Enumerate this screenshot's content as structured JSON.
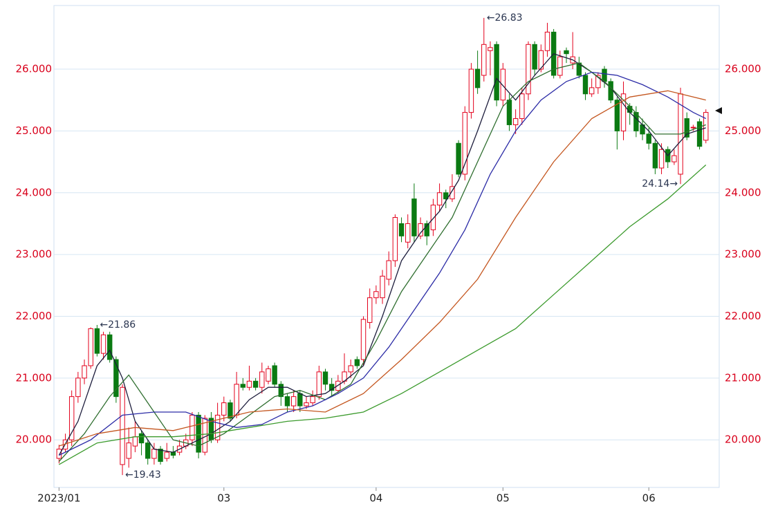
{
  "chart_data": {
    "type": "candlestick",
    "open": [
      19.7,
      19.85,
      20.0,
      20.7,
      21.0,
      21.2,
      21.8,
      21.4,
      21.7,
      21.3,
      19.6,
      19.7,
      19.9,
      20.1,
      19.95,
      19.7,
      19.85,
      19.7,
      19.8,
      19.8,
      19.9,
      20.0,
      20.4,
      19.8,
      20.35,
      20.0,
      20.4,
      20.6,
      20.4,
      20.9,
      20.85,
      20.95,
      20.85,
      20.95,
      21.2,
      20.9,
      20.7,
      20.55,
      20.75,
      20.55,
      20.6,
      20.7,
      21.1,
      20.9,
      20.8,
      20.95,
      21.1,
      21.3,
      21.3,
      21.9,
      22.3,
      22.3,
      22.6,
      22.9,
      23.5,
      23.2,
      23.9,
      23.3,
      23.5,
      23.4,
      23.8,
      24.0,
      23.9,
      24.8,
      24.3,
      25.3,
      26.0,
      25.9,
      26.3,
      26.4,
      25.5,
      25.5,
      25.1,
      25.2,
      25.6,
      26.4,
      26.0,
      26.3,
      26.6,
      25.9,
      26.3,
      26.1,
      26.1,
      25.9,
      25.6,
      25.7,
      26.0,
      25.8,
      25.5,
      25.0,
      25.4,
      25.3,
      25.1,
      24.95,
      24.8,
      24.4,
      24.7,
      24.5,
      24.3,
      25.2,
      25.05,
      25.15,
      24.85
    ],
    "high": [
      19.92,
      20.1,
      20.8,
      21.1,
      21.3,
      21.82,
      21.86,
      21.75,
      21.75,
      21.35,
      20.9,
      20.2,
      20.3,
      20.15,
      20.0,
      19.95,
      19.9,
      19.95,
      19.9,
      20.0,
      20.1,
      20.45,
      20.45,
      20.4,
      20.45,
      20.6,
      20.7,
      20.65,
      21.1,
      21.0,
      21.2,
      21.0,
      21.25,
      21.2,
      21.25,
      20.95,
      20.75,
      20.8,
      20.8,
      20.7,
      20.8,
      21.2,
      21.15,
      21.0,
      21.05,
      21.4,
      21.3,
      21.35,
      22.0,
      22.45,
      22.5,
      22.75,
      23.05,
      23.65,
      23.6,
      23.65,
      24.15,
      23.6,
      23.55,
      23.9,
      24.15,
      24.05,
      24.3,
      24.85,
      25.4,
      26.1,
      26.3,
      26.83,
      26.45,
      26.45,
      26.1,
      25.6,
      25.35,
      25.7,
      26.45,
      26.45,
      26.4,
      26.75,
      26.65,
      26.3,
      26.35,
      26.6,
      26.2,
      25.95,
      25.85,
      25.95,
      26.05,
      25.85,
      25.55,
      25.8,
      25.45,
      25.4,
      25.2,
      25.05,
      24.85,
      24.8,
      24.75,
      24.7,
      25.7,
      25.3,
      25.1,
      25.2,
      25.35
    ],
    "low": [
      19.62,
      19.8,
      19.9,
      20.6,
      20.9,
      21.15,
      21.35,
      21.3,
      21.25,
      20.6,
      19.43,
      19.55,
      19.8,
      19.75,
      19.6,
      19.6,
      19.6,
      19.65,
      19.7,
      19.75,
      19.85,
      19.9,
      19.7,
      19.75,
      19.95,
      19.95,
      20.3,
      20.3,
      20.35,
      20.8,
      20.8,
      20.8,
      20.75,
      20.9,
      20.85,
      20.55,
      20.45,
      20.45,
      20.45,
      20.5,
      20.55,
      20.65,
      20.8,
      20.7,
      20.75,
      20.9,
      21.0,
      21.15,
      21.2,
      21.8,
      22.2,
      22.2,
      22.5,
      22.8,
      23.2,
      23.1,
      23.2,
      23.25,
      23.15,
      23.3,
      23.7,
      23.75,
      23.85,
      24.25,
      24.2,
      25.2,
      25.6,
      25.8,
      25.9,
      25.4,
      25.4,
      25.0,
      24.95,
      25.1,
      25.5,
      25.9,
      25.95,
      26.2,
      25.85,
      25.85,
      26.1,
      26.0,
      25.85,
      25.5,
      25.55,
      25.6,
      25.7,
      25.45,
      24.7,
      24.85,
      25.1,
      24.9,
      24.85,
      24.7,
      24.3,
      24.3,
      24.4,
      24.45,
      24.14,
      24.85,
      25.0,
      24.7,
      24.8
    ],
    "close": [
      19.85,
      20.0,
      20.7,
      21.0,
      21.2,
      21.8,
      21.4,
      21.7,
      21.3,
      20.7,
      20.85,
      19.95,
      20.05,
      19.95,
      19.7,
      19.85,
      19.65,
      19.8,
      19.75,
      19.9,
      20.0,
      20.4,
      19.8,
      20.35,
      20.0,
      20.4,
      20.6,
      20.35,
      20.9,
      20.85,
      20.95,
      20.85,
      21.1,
      21.15,
      20.9,
      20.7,
      20.55,
      20.7,
      20.55,
      20.6,
      20.7,
      21.1,
      20.9,
      20.8,
      20.95,
      21.1,
      21.2,
      21.2,
      21.95,
      22.3,
      22.4,
      22.65,
      22.9,
      23.6,
      23.3,
      23.5,
      23.3,
      23.5,
      23.3,
      23.8,
      24.0,
      23.9,
      24.1,
      24.3,
      25.3,
      26.0,
      25.7,
      26.4,
      26.35,
      25.5,
      26.0,
      25.1,
      25.2,
      25.6,
      26.4,
      26.0,
      26.3,
      26.6,
      25.9,
      26.2,
      26.25,
      26.2,
      25.9,
      25.6,
      25.7,
      25.9,
      25.8,
      25.5,
      25.0,
      25.6,
      25.3,
      25.0,
      24.95,
      24.8,
      24.4,
      24.7,
      24.5,
      24.6,
      25.6,
      24.9,
      25.06,
      24.75,
      25.3
    ],
    "up_color": "#e3001b",
    "down_color": "#0b7a12",
    "series": [
      {
        "color": "#1d1d3c",
        "x": [
          0,
          3,
          6,
          8,
          10,
          12,
          15,
          18,
          21,
          24,
          27,
          30,
          33,
          36,
          39,
          42,
          45,
          48,
          51,
          54,
          57,
          60,
          63,
          66,
          69,
          72,
          75,
          78,
          81,
          84,
          87,
          90,
          93,
          96,
          99,
          102
        ],
        "values": [
          19.75,
          20.3,
          21.2,
          21.45,
          21.0,
          20.3,
          19.85,
          19.8,
          19.95,
          20.1,
          20.3,
          20.65,
          20.85,
          20.85,
          20.7,
          20.75,
          20.95,
          21.2,
          22.0,
          22.9,
          23.35,
          23.7,
          24.2,
          25.0,
          25.85,
          25.5,
          25.9,
          26.25,
          26.15,
          25.95,
          25.7,
          25.3,
          25.0,
          24.6,
          24.95,
          25.05
        ]
      },
      {
        "color": "#2f6e2f",
        "x": [
          0,
          4,
          8,
          11,
          14,
          18,
          22,
          26,
          30,
          34,
          38,
          42,
          46,
          50,
          54,
          58,
          62,
          66,
          70,
          74,
          78,
          82,
          86,
          90,
          94,
          98,
          102
        ],
        "values": [
          19.65,
          20.1,
          20.7,
          21.05,
          20.6,
          20.0,
          19.9,
          20.1,
          20.4,
          20.7,
          20.8,
          20.65,
          20.9,
          21.6,
          22.4,
          23.0,
          23.6,
          24.5,
          25.4,
          25.8,
          26.0,
          26.1,
          25.8,
          25.4,
          24.95,
          24.95,
          25.1
        ]
      },
      {
        "color": "#2b2ba6",
        "x": [
          0,
          5,
          10,
          15,
          20,
          24,
          28,
          32,
          36,
          40,
          44,
          48,
          52,
          56,
          60,
          64,
          68,
          72,
          76,
          80,
          84,
          88,
          92,
          96,
          100,
          102
        ],
        "values": [
          19.75,
          20.0,
          20.4,
          20.45,
          20.45,
          20.3,
          20.2,
          20.25,
          20.45,
          20.55,
          20.75,
          21.0,
          21.5,
          22.1,
          22.7,
          23.4,
          24.3,
          25.0,
          25.5,
          25.8,
          25.95,
          25.9,
          25.75,
          25.55,
          25.3,
          25.2
        ]
      },
      {
        "color": "#c4561f",
        "x": [
          0,
          6,
          12,
          18,
          24,
          30,
          36,
          42,
          48,
          54,
          60,
          66,
          72,
          78,
          84,
          90,
          96,
          102
        ],
        "values": [
          19.9,
          20.1,
          20.2,
          20.15,
          20.3,
          20.45,
          20.5,
          20.45,
          20.75,
          21.3,
          21.9,
          22.6,
          23.6,
          24.5,
          25.2,
          25.55,
          25.65,
          25.5
        ]
      },
      {
        "color": "#3b9a2c",
        "x": [
          0,
          6,
          12,
          18,
          24,
          30,
          36,
          42,
          48,
          54,
          60,
          66,
          72,
          78,
          84,
          90,
          96,
          102
        ],
        "values": [
          19.6,
          19.95,
          20.05,
          20.05,
          20.1,
          20.2,
          20.3,
          20.35,
          20.45,
          20.75,
          21.1,
          21.45,
          21.8,
          22.35,
          22.9,
          23.45,
          23.9,
          24.45
        ]
      }
    ],
    "annotations": [
      {
        "text": "←21.86",
        "x": 6,
        "y": 21.86
      },
      {
        "text": "←19.43",
        "x": 10,
        "y": 19.43
      },
      {
        "text": "←26.83",
        "x": 67,
        "y": 26.83
      },
      {
        "text": "24.14→",
        "x": 98,
        "y": 24.14
      }
    ],
    "xlim": [
      -0.8,
      104.1
    ],
    "xticks": [
      {
        "value": 0,
        "label": "2023/01"
      },
      {
        "value": 26,
        "label": "03"
      },
      {
        "value": 50,
        "label": "04"
      },
      {
        "value": 70,
        "label": "05"
      },
      {
        "value": 93,
        "label": "06"
      }
    ],
    "ylim": [
      19.23,
      27.03
    ],
    "yticks": [
      {
        "value": 20,
        "label": "20.000"
      },
      {
        "value": 21,
        "label": "21.000"
      },
      {
        "value": 22,
        "label": "22.000"
      },
      {
        "value": 23,
        "label": "23.000"
      },
      {
        "value": 24,
        "label": "24.000"
      },
      {
        "value": 25,
        "label": "25.000"
      },
      {
        "value": 26,
        "label": "26.000"
      }
    ],
    "grid": true
  }
}
